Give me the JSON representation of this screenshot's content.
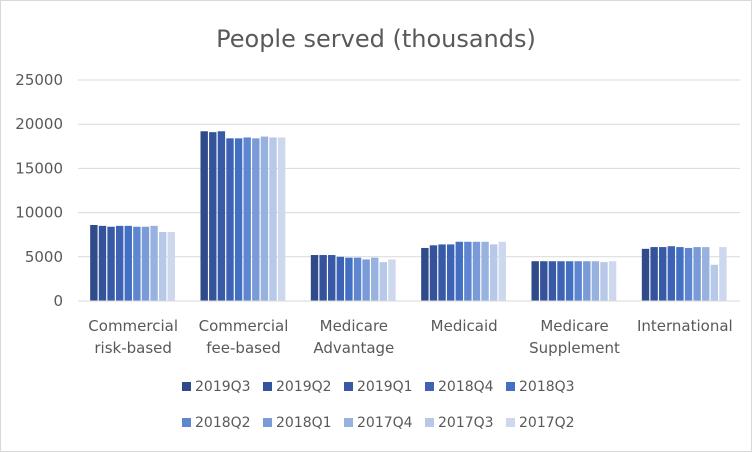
{
  "chart_data": {
    "type": "bar",
    "title": "People served (thousands)",
    "xlabel": "",
    "ylabel": "",
    "ylim": [
      0,
      25000
    ],
    "yticks": [
      0,
      5000,
      10000,
      15000,
      20000,
      25000
    ],
    "grid": true,
    "legend_position": "bottom",
    "categories": [
      [
        "Commercial",
        "risk-based"
      ],
      [
        "Commercial",
        "fee-based"
      ],
      [
        "Medicare",
        "Advantage"
      ],
      [
        "Medicaid"
      ],
      [
        "Medicare",
        "Supplement"
      ],
      [
        "International"
      ]
    ],
    "series": [
      {
        "name": "2019Q3",
        "color": "#2f4b8a",
        "values": [
          8600,
          19200,
          5200,
          6000,
          4500,
          5900
        ]
      },
      {
        "name": "2019Q2",
        "color": "#34539b",
        "values": [
          8500,
          19100,
          5200,
          6300,
          4500,
          6100
        ]
      },
      {
        "name": "2019Q1",
        "color": "#385aa6",
        "values": [
          8400,
          19200,
          5200,
          6400,
          4500,
          6100
        ]
      },
      {
        "name": "2018Q4",
        "color": "#3e63b5",
        "values": [
          8500,
          18400,
          5000,
          6400,
          4500,
          6200
        ]
      },
      {
        "name": "2018Q3",
        "color": "#4470c4",
        "values": [
          8500,
          18400,
          4900,
          6700,
          4500,
          6100
        ]
      },
      {
        "name": "2018Q2",
        "color": "#5f86d1",
        "values": [
          8400,
          18500,
          4900,
          6700,
          4500,
          6000
        ]
      },
      {
        "name": "2018Q1",
        "color": "#7a9bd8",
        "values": [
          8400,
          18400,
          4700,
          6700,
          4500,
          6100
        ]
      },
      {
        "name": "2017Q4",
        "color": "#98b2df",
        "values": [
          8500,
          18600,
          4900,
          6700,
          4500,
          6100
        ]
      },
      {
        "name": "2017Q3",
        "color": "#b7c8e8",
        "values": [
          7800,
          18500,
          4400,
          6400,
          4400,
          4100
        ]
      },
      {
        "name": "2017Q2",
        "color": "#cdd8ee",
        "values": [
          7800,
          18500,
          4700,
          6700,
          4500,
          6100
        ]
      }
    ]
  }
}
